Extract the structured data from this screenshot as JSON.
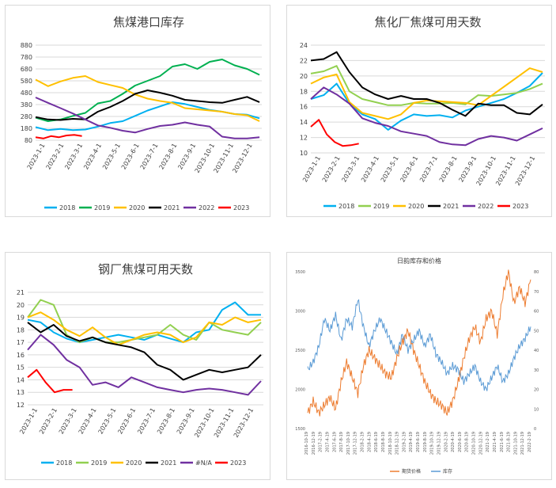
{
  "chart_data": [
    {
      "type": "line",
      "title": "焦煤港口库存",
      "ylim": [
        80,
        880
      ],
      "yticks": [
        80,
        180,
        280,
        380,
        480,
        580,
        680,
        780,
        880
      ],
      "x_ticks": [
        "2023-1-1",
        "2023-2-1",
        "2023-3-1",
        "2023-4-1",
        "2023-5-1",
        "2023-6-1",
        "2023-7-1",
        "2023-8-1",
        "2023-9-1",
        "2023-10-1",
        "2023-11-1",
        "2023-12-1"
      ],
      "series": [
        {
          "name": "2018",
          "color": "#00b0f0",
          "values": [
            190,
            165,
            175,
            165,
            170,
            195,
            225,
            240,
            285,
            330,
            365,
            400,
            385,
            360,
            335,
            320,
            300,
            295,
            265
          ],
          "end": 0.99
        },
        {
          "name": "2019",
          "color": "#00b050",
          "values": [
            270,
            240,
            255,
            285,
            310,
            390,
            410,
            470,
            540,
            580,
            620,
            700,
            720,
            680,
            740,
            760,
            710,
            680,
            630
          ],
          "end": 0.99
        },
        {
          "name": "2020",
          "color": "#ffc000",
          "values": [
            590,
            535,
            575,
            605,
            620,
            570,
            545,
            520,
            465,
            430,
            410,
            395,
            350,
            340,
            330,
            320,
            300,
            290,
            240
          ],
          "end": 0.99
        },
        {
          "name": "2021",
          "color": "#000000",
          "values": [
            275,
            255,
            250,
            260,
            255,
            320,
            360,
            410,
            470,
            500,
            480,
            455,
            420,
            410,
            400,
            395,
            420,
            445,
            400
          ],
          "end": 0.99
        },
        {
          "name": "2022",
          "color": "#7030a0",
          "values": [
            440,
            395,
            350,
            305,
            255,
            205,
            185,
            160,
            145,
            175,
            200,
            210,
            230,
            210,
            195,
            110,
            95,
            95,
            105
          ],
          "end": 0.99
        },
        {
          "name": "2023",
          "color": "#ff0000",
          "values": [
            105,
            95,
            115,
            105,
            120,
            125,
            115
          ],
          "end": 0.205
        }
      ]
    },
    {
      "type": "line",
      "title": "焦化厂焦煤可用天数",
      "ylim": [
        10,
        24
      ],
      "yticks": [
        10,
        12,
        14,
        16,
        18,
        20,
        22,
        24
      ],
      "x_ticks": [
        "2023-1-1",
        "2023-2-1",
        "2023-3-1",
        "2023-4-1",
        "2023-5-1",
        "2023-6-1",
        "2023-7-1",
        "2023-8-1",
        "2023-9-1",
        "2023-10-1",
        "2023-11-1",
        "2023-12-1"
      ],
      "series": [
        {
          "name": "2018",
          "color": "#00b0f0",
          "values": [
            17.0,
            17.5,
            19.0,
            16.4,
            15.0,
            14.4,
            13.0,
            14.2,
            15.0,
            14.8,
            14.9,
            14.6,
            15.5,
            16.0,
            16.5,
            17.0,
            17.8,
            18.7,
            20.4
          ],
          "end": 0.99
        },
        {
          "name": "2019",
          "color": "#92d050",
          "values": [
            20.3,
            20.6,
            21.3,
            18.0,
            17.0,
            16.6,
            16.2,
            16.2,
            16.5,
            16.4,
            16.4,
            16.5,
            16.3,
            17.5,
            17.4,
            17.6,
            17.8,
            18.3,
            19.0
          ],
          "end": 0.99
        },
        {
          "name": "2020",
          "color": "#ffc000",
          "values": [
            19.0,
            19.8,
            20.2,
            16.6,
            15.2,
            14.8,
            14.4,
            15.0,
            16.5,
            16.8,
            16.7,
            16.6,
            16.5,
            16.2,
            17.4,
            18.6,
            19.8,
            21.0,
            20.5
          ],
          "end": 0.99
        },
        {
          "name": "2021",
          "color": "#000000",
          "values": [
            22.0,
            22.2,
            23.1,
            20.5,
            18.5,
            17.6,
            17.0,
            17.4,
            17.0,
            17.0,
            16.5,
            15.6,
            14.8,
            16.4,
            16.2,
            16.2,
            15.2,
            15.0,
            16.3
          ],
          "end": 0.99
        },
        {
          "name": "2022",
          "color": "#7030a0",
          "values": [
            17.0,
            18.5,
            17.6,
            16.4,
            14.5,
            13.9,
            13.5,
            12.8,
            12.5,
            12.2,
            11.4,
            11.1,
            11.0,
            11.8,
            12.2,
            12.0,
            11.6,
            12.4,
            13.2
          ],
          "end": 0.99
        },
        {
          "name": "2023",
          "color": "#ff0000",
          "values": [
            13.4,
            14.3,
            12.4,
            11.4,
            10.9,
            11.0,
            11.2
          ],
          "end": 0.205
        }
      ]
    },
    {
      "type": "line",
      "title": "钢厂焦煤可用天数",
      "ylim": [
        12,
        21
      ],
      "yticks": [
        12,
        13,
        14,
        15,
        16,
        17,
        18,
        19,
        20,
        21
      ],
      "x_ticks": [
        "2023-1-1",
        "2023-2-1",
        "2023-3-1",
        "2023-4-1",
        "2023-5-1",
        "2023-6-1",
        "2023-7-1",
        "2023-8-1",
        "2023-9-1",
        "2023-10-1",
        "2023-11-1",
        "2023-12-1"
      ],
      "series": [
        {
          "name": "2018",
          "color": "#00b0f0",
          "values": [
            18.8,
            18.6,
            17.8,
            17.3,
            17.0,
            17.2,
            17.4,
            17.6,
            17.4,
            17.2,
            17.6,
            17.3,
            17.0,
            17.8,
            18.0,
            19.6,
            20.2,
            19.2,
            19.2
          ],
          "end": 0.99
        },
        {
          "name": "2019",
          "color": "#92d050",
          "values": [
            19.0,
            20.4,
            20.0,
            17.6,
            17.0,
            17.4,
            17.0,
            17.0,
            17.2,
            17.4,
            17.6,
            18.4,
            17.6,
            17.2,
            18.6,
            18.0,
            17.8,
            17.6,
            18.6
          ],
          "end": 0.99
        },
        {
          "name": "2020",
          "color": "#ffc000",
          "values": [
            19.0,
            19.4,
            18.8,
            18.0,
            17.5,
            18.2,
            17.4,
            16.8,
            17.2,
            17.6,
            17.8,
            17.6,
            17.0,
            17.4,
            18.6,
            18.4,
            19.0,
            18.6,
            18.8
          ],
          "end": 0.99
        },
        {
          "name": "2021",
          "color": "#000000",
          "values": [
            18.6,
            17.8,
            18.4,
            17.5,
            17.1,
            17.4,
            17.0,
            16.8,
            16.6,
            16.2,
            15.2,
            14.8,
            14.0,
            14.4,
            14.8,
            14.6,
            14.8,
            15.0,
            16.0
          ],
          "end": 0.99
        },
        {
          "name": "#N/A",
          "color": "#7030a0",
          "values": [
            16.4,
            17.6,
            16.8,
            15.6,
            15.0,
            13.6,
            13.8,
            13.4,
            14.2,
            13.8,
            13.4,
            13.2,
            13.0,
            13.2,
            13.3,
            13.2,
            13.0,
            12.8,
            13.9
          ],
          "end": 0.99
        },
        {
          "name": "2023",
          "color": "#ff0000",
          "values": [
            14.2,
            14.8,
            13.8,
            13.0,
            13.2,
            13.2
          ],
          "end": 0.19
        }
      ]
    },
    {
      "type": "line",
      "title": "日韵库存和价格",
      "ylim_left": [
        1500,
        3500
      ],
      "yticks_left": [
        1500,
        2000,
        2500,
        3000,
        3500
      ],
      "ylim_right": [
        0,
        80
      ],
      "yticks_right": [
        0,
        10,
        20,
        30,
        40,
        50,
        60,
        70,
        80
      ],
      "x_ticks": [
        "2016-10-19",
        "2016-12-19",
        "2017-2-19",
        "2017-4-19",
        "2017-6-19",
        "2017-8-19",
        "2017-10-19",
        "2017-12-19",
        "2018-2-19",
        "2018-4-19",
        "2018-6-19",
        "2018-8-19",
        "2018-10-19",
        "2018-12-19",
        "2019-2-19",
        "2019-4-19",
        "2019-6-19",
        "2019-8-19",
        "2019-10-19",
        "2019-12-19",
        "2020-2-19",
        "2020-4-19",
        "2020-6-19",
        "2020-8-19",
        "2020-10-19",
        "2020-12-19",
        "2021-2-19",
        "2021-4-19",
        "2021-6-19",
        "2021-8-19",
        "2021-10-19",
        "2021-12-19",
        "2022-2-19"
      ],
      "series": [
        {
          "name": "期货价格",
          "color": "#ed7d31",
          "axis": "left",
          "values": [
            1700,
            1850,
            1700,
            1800,
            1900,
            1750,
            2100,
            2350,
            2150,
            1950,
            2300,
            2500,
            2400,
            2300,
            2200,
            2150,
            2400,
            2600,
            2750,
            2500,
            2300,
            2100,
            1950,
            1850,
            1800,
            1700,
            1850,
            2100,
            2400,
            2650,
            2800,
            2600,
            2900,
            3000,
            2700,
            3200,
            3500,
            3100,
            3300,
            3100,
            3400
          ],
          "end": 1.0
        },
        {
          "name": "库存",
          "color": "#5b9bd5",
          "axis": "right",
          "values": [
            30,
            34,
            42,
            56,
            50,
            58,
            45,
            56,
            52,
            66,
            52,
            42,
            50,
            56,
            50,
            44,
            38,
            48,
            40,
            45,
            50,
            42,
            48,
            38,
            34,
            28,
            32,
            30,
            24,
            28,
            32,
            24,
            20,
            26,
            32,
            24,
            28,
            36,
            42,
            46,
            52
          ],
          "end": 1.0
        }
      ],
      "legend": [
        "期货价格",
        "库存"
      ]
    }
  ]
}
